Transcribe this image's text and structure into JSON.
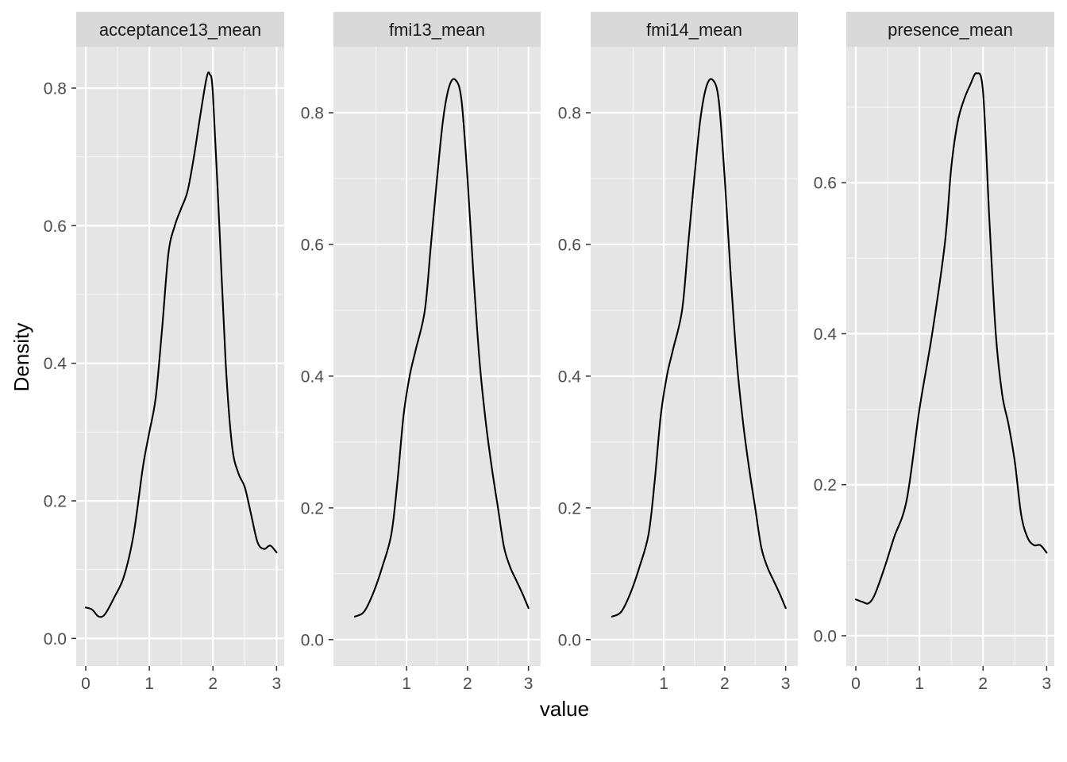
{
  "chart_data": {
    "type": "line",
    "kind": "faceted density plot",
    "xlabel": "value",
    "ylabel": "Density",
    "grid": true,
    "colors": {
      "panel_background": "#e5e5e5",
      "strip_background": "#d9d9d9",
      "grid_line": "#ffffff",
      "curve": "#000000"
    },
    "facets": [
      {
        "title": "acceptance13_mean",
        "xlim": [
          -0.15,
          3.12
        ],
        "ylim": [
          -0.04,
          0.86
        ],
        "x_ticks": [
          0,
          1,
          2,
          3
        ],
        "y_ticks": [
          0.0,
          0.2,
          0.4,
          0.6,
          0.8
        ],
        "y_tick_labels": [
          "0.0",
          "0.2",
          "0.4",
          "0.6",
          "0.8"
        ],
        "x": [
          0.0,
          0.1,
          0.2,
          0.3,
          0.45,
          0.6,
          0.75,
          0.9,
          1.0,
          1.1,
          1.2,
          1.3,
          1.4,
          1.5,
          1.6,
          1.7,
          1.8,
          1.9,
          1.95,
          2.0,
          2.1,
          2.2,
          2.3,
          2.4,
          2.5,
          2.6,
          2.7,
          2.8,
          2.9,
          3.0
        ],
        "y": [
          0.045,
          0.042,
          0.032,
          0.035,
          0.06,
          0.09,
          0.15,
          0.25,
          0.3,
          0.35,
          0.45,
          0.56,
          0.6,
          0.625,
          0.65,
          0.7,
          0.76,
          0.815,
          0.82,
          0.79,
          0.6,
          0.4,
          0.28,
          0.24,
          0.22,
          0.18,
          0.14,
          0.13,
          0.135,
          0.125
        ]
      },
      {
        "title": "fmi13_mean",
        "xlim": [
          -0.2,
          3.2
        ],
        "ylim": [
          -0.04,
          0.9
        ],
        "x_ticks": [
          1,
          2,
          3
        ],
        "y_ticks": [
          0.0,
          0.2,
          0.4,
          0.6,
          0.8
        ],
        "y_tick_labels": [
          "0.0",
          "0.2",
          "0.4",
          "0.6",
          "0.8"
        ],
        "x": [
          0.15,
          0.3,
          0.45,
          0.6,
          0.75,
          0.85,
          0.95,
          1.05,
          1.15,
          1.3,
          1.4,
          1.5,
          1.6,
          1.7,
          1.8,
          1.9,
          2.0,
          2.1,
          2.2,
          2.3,
          2.4,
          2.5,
          2.6,
          2.7,
          2.8,
          2.9,
          3.0
        ],
        "y": [
          0.035,
          0.042,
          0.07,
          0.11,
          0.16,
          0.24,
          0.34,
          0.4,
          0.44,
          0.5,
          0.6,
          0.7,
          0.79,
          0.84,
          0.85,
          0.82,
          0.7,
          0.55,
          0.42,
          0.33,
          0.26,
          0.2,
          0.14,
          0.11,
          0.09,
          0.07,
          0.048
        ]
      },
      {
        "title": "fmi14_mean",
        "xlim": [
          -0.2,
          3.2
        ],
        "ylim": [
          -0.04,
          0.9
        ],
        "x_ticks": [
          1,
          2,
          3
        ],
        "y_ticks": [
          0.0,
          0.2,
          0.4,
          0.6,
          0.8
        ],
        "y_tick_labels": [
          "0.0",
          "0.2",
          "0.4",
          "0.6",
          "0.8"
        ],
        "x": [
          0.15,
          0.3,
          0.45,
          0.6,
          0.75,
          0.85,
          0.95,
          1.05,
          1.15,
          1.3,
          1.4,
          1.5,
          1.6,
          1.7,
          1.8,
          1.9,
          2.0,
          2.1,
          2.2,
          2.3,
          2.4,
          2.5,
          2.6,
          2.7,
          2.8,
          2.9,
          3.0
        ],
        "y": [
          0.035,
          0.042,
          0.07,
          0.11,
          0.16,
          0.24,
          0.34,
          0.4,
          0.44,
          0.5,
          0.6,
          0.7,
          0.79,
          0.84,
          0.85,
          0.82,
          0.7,
          0.55,
          0.42,
          0.33,
          0.26,
          0.2,
          0.14,
          0.11,
          0.09,
          0.07,
          0.048
        ]
      },
      {
        "title": "presence_mean",
        "xlim": [
          -0.15,
          3.12
        ],
        "ylim": [
          -0.04,
          0.78
        ],
        "x_ticks": [
          0,
          1,
          2,
          3
        ],
        "y_ticks": [
          0.0,
          0.2,
          0.4,
          0.6
        ],
        "y_tick_labels": [
          "0.0",
          "0.2",
          "0.4",
          "0.6"
        ],
        "x": [
          0.0,
          0.1,
          0.2,
          0.3,
          0.45,
          0.6,
          0.8,
          1.0,
          1.2,
          1.4,
          1.5,
          1.6,
          1.7,
          1.8,
          1.9,
          2.0,
          2.1,
          2.2,
          2.3,
          2.4,
          2.5,
          2.6,
          2.7,
          2.8,
          2.9,
          3.0
        ],
        "y": [
          0.048,
          0.045,
          0.043,
          0.055,
          0.09,
          0.13,
          0.18,
          0.3,
          0.4,
          0.52,
          0.62,
          0.68,
          0.71,
          0.73,
          0.745,
          0.72,
          0.55,
          0.4,
          0.32,
          0.28,
          0.23,
          0.16,
          0.13,
          0.12,
          0.12,
          0.11
        ]
      }
    ]
  }
}
